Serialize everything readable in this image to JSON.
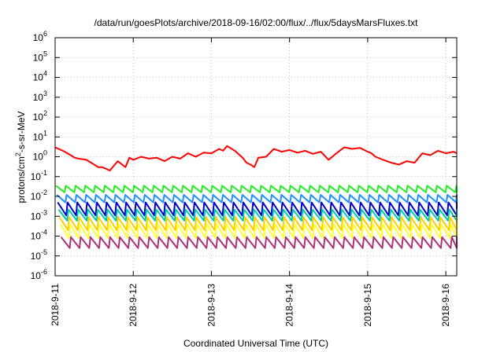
{
  "chart_data": {
    "type": "line",
    "title": "/data/run/goesPlots/archive/2018-09-16/02:00/flux/../flux/5daysMarsFluxes.txt",
    "xlabel": "Coordinated Universal Time (UTC)",
    "ylabel_prefix": "protons/cm",
    "ylabel_sup": "2",
    "ylabel_suffix": "-s-sr-MeV",
    "x_ticks": [
      "2018-9-11",
      "2018-9-12",
      "2018-9-13",
      "2018-9-14",
      "2018-9-15",
      "2018-9-16"
    ],
    "y_scale": "log",
    "y_ticks": [
      "-6",
      "-5",
      "-4",
      "-3",
      "-2",
      "-1",
      "0",
      "1",
      "2",
      "3",
      "4",
      "5",
      "6"
    ],
    "xlim_days": [
      0,
      5.14
    ],
    "ylim_log10": [
      -6,
      6
    ],
    "grid": true,
    "series": [
      {
        "color": "#ff0000",
        "kind": "high",
        "x": [
          0,
          0.1,
          0.2,
          0.25,
          0.3,
          0.4,
          0.5,
          0.55,
          0.6,
          0.65,
          0.7,
          0.8,
          0.9,
          0.95,
          1.0,
          1.1,
          1.2,
          1.3,
          1.4,
          1.5,
          1.6,
          1.7,
          1.8,
          1.9,
          2.0,
          2.1,
          2.15,
          2.2,
          2.3,
          2.4,
          2.45,
          2.5,
          2.55,
          2.6,
          2.7,
          2.8,
          2.9,
          3.0,
          3.1,
          3.2,
          3.3,
          3.4,
          3.5,
          3.6,
          3.7,
          3.8,
          3.9,
          4.0,
          4.05,
          4.1,
          4.2,
          4.3,
          4.4,
          4.5,
          4.6,
          4.7,
          4.8,
          4.9,
          5.0,
          5.1,
          5.14
        ],
        "y": [
          3,
          2,
          1.2,
          0.9,
          0.8,
          0.7,
          0.4,
          0.3,
          0.3,
          0.25,
          0.2,
          0.6,
          0.3,
          0.9,
          0.7,
          1.0,
          0.8,
          0.9,
          0.6,
          1.0,
          0.8,
          1.5,
          1.0,
          1.6,
          1.5,
          2.5,
          2.0,
          3.5,
          2.0,
          0.9,
          0.5,
          0.4,
          0.3,
          0.9,
          1.0,
          2.5,
          1.8,
          2.2,
          1.6,
          2.0,
          1.4,
          1.8,
          0.7,
          1.5,
          3.0,
          2.5,
          2.8,
          1.8,
          1.5,
          1.0,
          0.7,
          0.5,
          0.4,
          0.6,
          0.5,
          1.5,
          1.2,
          2.0,
          1.5,
          1.8,
          1.5
        ]
      },
      {
        "color": "#22ee22",
        "kind": "saw",
        "peak": 0.035,
        "trough": 0.016
      },
      {
        "color": "#1e90ff",
        "kind": "saw",
        "peak": 0.012,
        "trough": 0.005
      },
      {
        "color": "#0000cc",
        "kind": "saw",
        "peak": 0.005,
        "trough": 0.0011
      },
      {
        "color": "#00ccaa",
        "kind": "saw",
        "peak": 0.0022,
        "trough": 0.0006
      },
      {
        "color": "#ffcc00",
        "kind": "saw",
        "peak": 0.0009,
        "trough": 0.0002
      },
      {
        "color": "#ffff33",
        "kind": "saw",
        "peak": 0.0004,
        "trough": 8e-05
      },
      {
        "color": "#aa3377",
        "kind": "saw",
        "peak": 9e-05,
        "trough": 2.5e-05
      }
    ],
    "saw_period_days": 0.125
  }
}
